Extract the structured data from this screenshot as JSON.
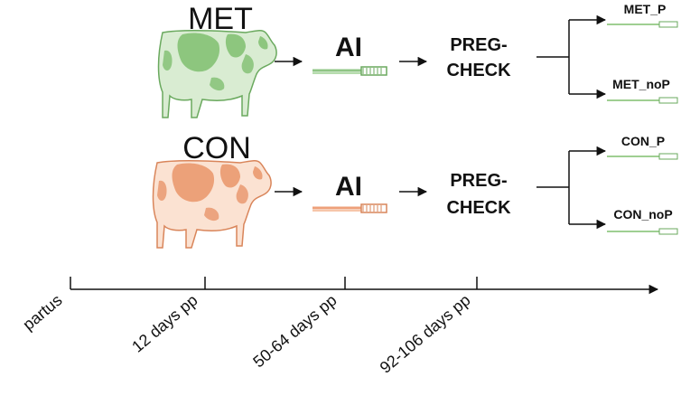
{
  "colors": {
    "met_fill": "#9fcf92",
    "met_spot": "#6fb460",
    "met_stroke": "#6aa95e",
    "con_fill": "#f0b794",
    "con_spot": "#e48f5e",
    "con_stroke": "#d9855a",
    "ink": "#111111"
  },
  "groups": [
    {
      "id": "met",
      "label": "MET",
      "ai": "AI",
      "preg_line1": "PREG-",
      "preg_line2": "CHECK",
      "outcomes": [
        "MET_P",
        "MET_noP"
      ]
    },
    {
      "id": "con",
      "label": "CON",
      "ai": "AI",
      "preg_line1": "PREG-",
      "preg_line2": "CHECK",
      "outcomes": [
        "CON_P",
        "CON_noP"
      ]
    }
  ],
  "timeline": {
    "labels": [
      "partus",
      "12 days pp",
      "50-64 days pp",
      "92-106 days pp"
    ]
  }
}
